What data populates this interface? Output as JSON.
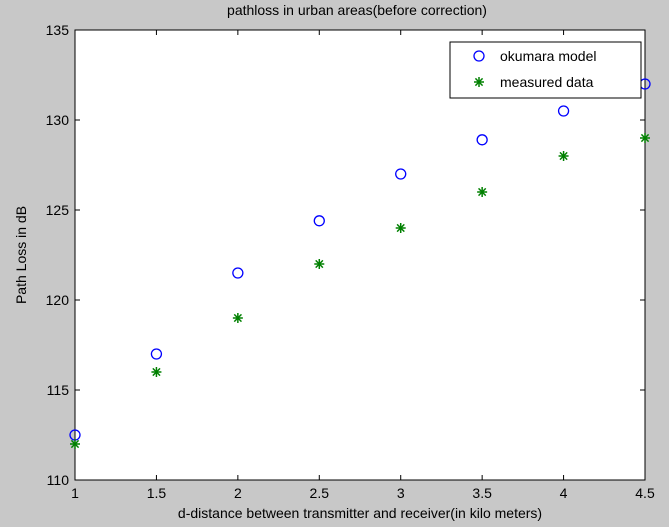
{
  "chart_data": {
    "type": "scatter",
    "title": "pathloss in urban areas(before correction)",
    "xlabel": "d-distance between transmitter and receiver(in kilo meters)",
    "ylabel": "Path Loss in dB",
    "xlim": [
      1,
      4.5
    ],
    "ylim": [
      110,
      135
    ],
    "xticks": [
      "1",
      "1.5",
      "2",
      "2.5",
      "3",
      "3.5",
      "4",
      "4.5"
    ],
    "yticks": [
      "110",
      "115",
      "120",
      "125",
      "130",
      "135"
    ],
    "grid": false,
    "legend_position": "top-right",
    "series": [
      {
        "name": "okumara model",
        "marker": "circle",
        "color": "#0000ff",
        "x": [
          1,
          1.5,
          2,
          2.5,
          3,
          3.5,
          4,
          4.5
        ],
        "y": [
          112.5,
          117,
          121.5,
          124.4,
          127,
          128.9,
          130.5,
          132
        ]
      },
      {
        "name": "measured data",
        "marker": "star",
        "color": "#008000",
        "x": [
          1,
          1.5,
          2,
          2.5,
          3,
          3.5,
          4,
          4.5
        ],
        "y": [
          112,
          116,
          119,
          122,
          124,
          126,
          128,
          129
        ]
      }
    ]
  }
}
